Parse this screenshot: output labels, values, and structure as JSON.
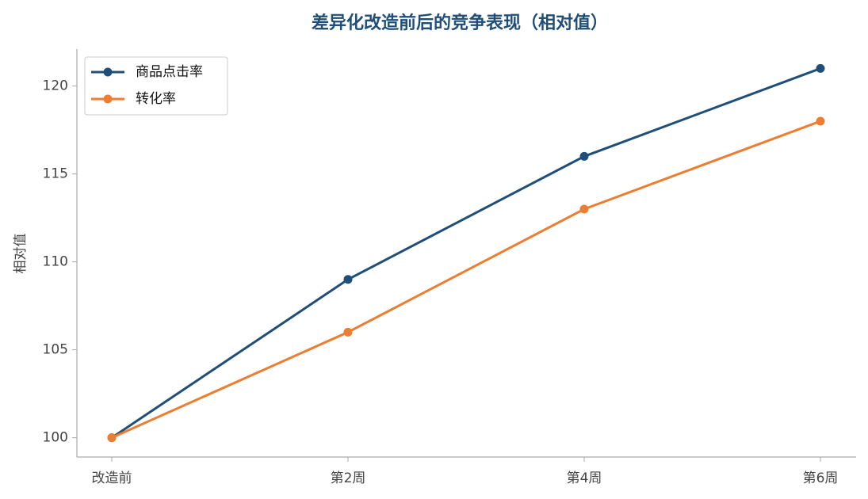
{
  "chart_data": {
    "type": "line",
    "title": "差异化改造前后的竞争表现（相对值）",
    "y_label": "相对值",
    "categories": [
      "改造前",
      "第2周",
      "第4周",
      "第6周"
    ],
    "series": [
      {
        "name": "商品点击率",
        "color": "#1f4e79",
        "values": [
          100,
          109,
          116,
          121
        ]
      },
      {
        "name": "转化率",
        "color": "#ed7d31",
        "values": [
          100,
          106,
          113,
          118
        ]
      }
    ],
    "ylim": [
      98.9,
      122.1
    ],
    "yticks": [
      100,
      105,
      110,
      115,
      120
    ],
    "grid": false,
    "legend": "upper-left"
  }
}
